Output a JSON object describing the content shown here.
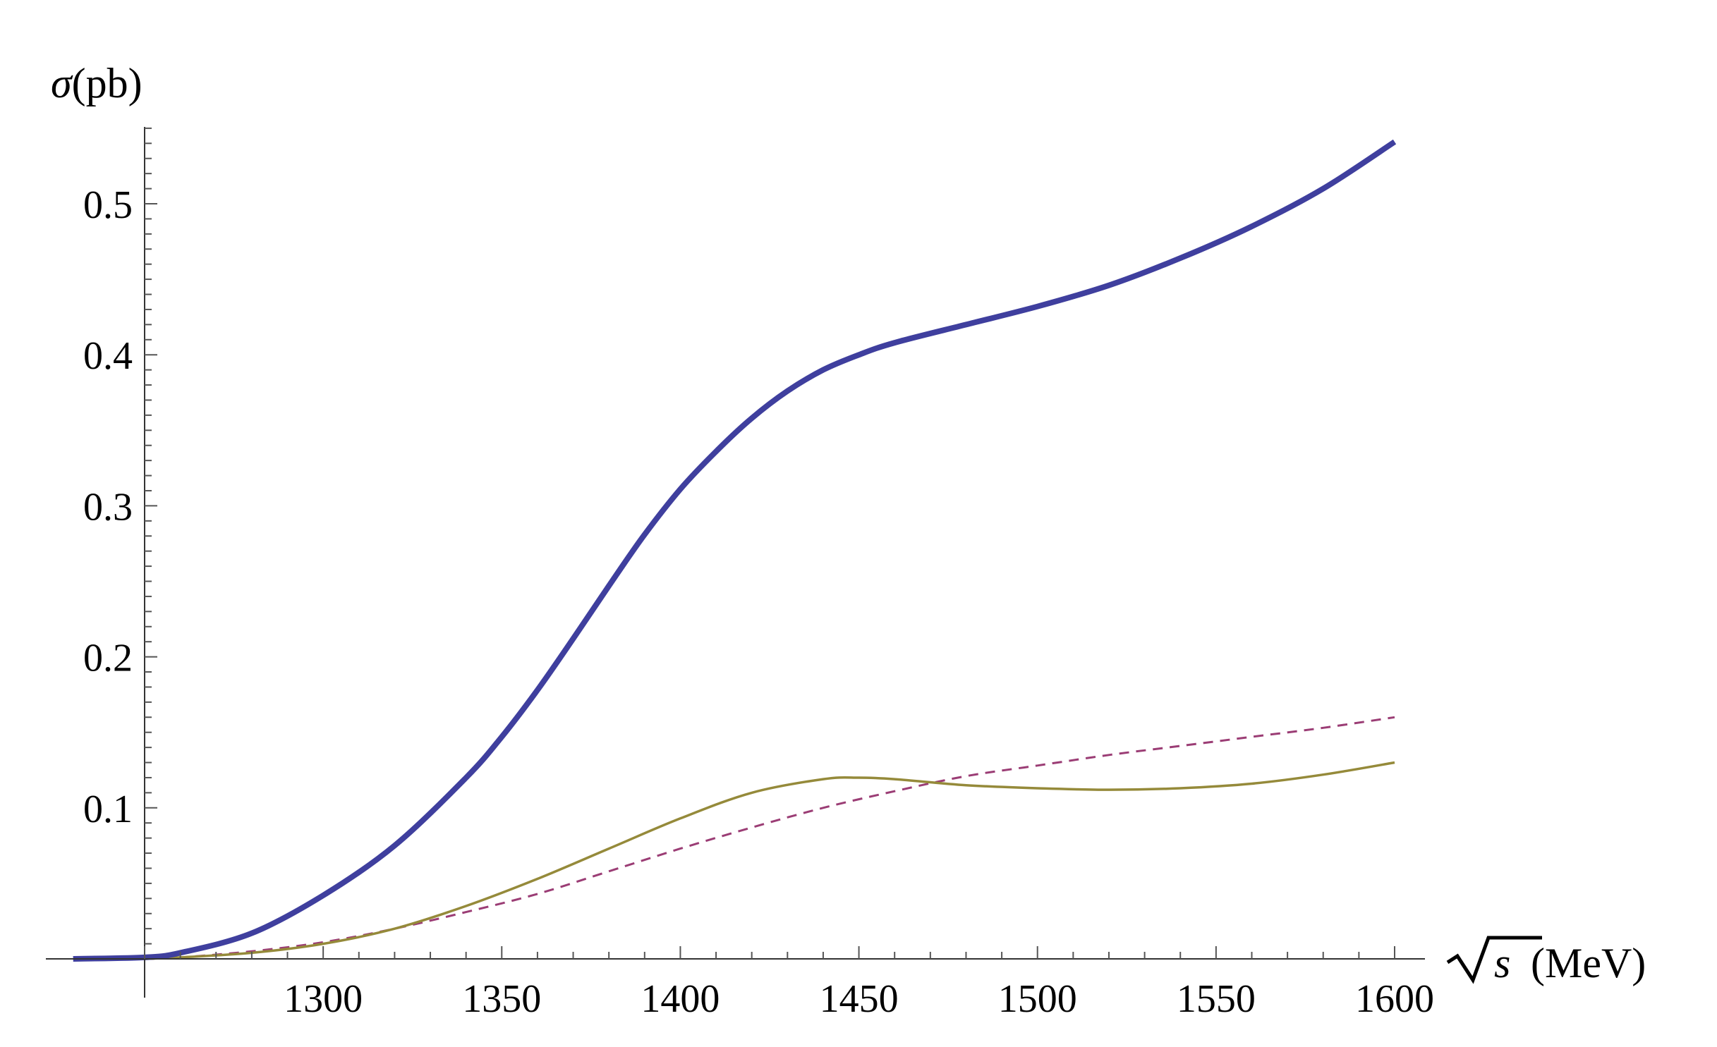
{
  "chart_data": {
    "type": "line",
    "title": "",
    "xlabel_symbol": "s",
    "xlabel_unit": "(MeV)",
    "ylabel_symbol": "σ",
    "ylabel_unit": "(pb)",
    "xlim": [
      1230,
      1600
    ],
    "ylim": [
      0,
      0.55
    ],
    "grid": false,
    "legend": "none",
    "x_ticks": [
      1300,
      1350,
      1400,
      1450,
      1500,
      1550,
      1600
    ],
    "x_tick_labels": [
      "1300",
      "1350",
      "1400",
      "1450",
      "1500",
      "1550",
      "1600"
    ],
    "y_ticks": [
      0.1,
      0.2,
      0.3,
      0.4,
      0.5
    ],
    "y_tick_labels": [
      "0.1",
      "0.2",
      "0.3",
      "0.4",
      "0.5"
    ],
    "series": [
      {
        "color": "#3f3f9e",
        "style": "solid-thick",
        "x": [
          1230,
          1250,
          1260,
          1280,
          1300,
          1320,
          1340,
          1350,
          1360,
          1370,
          1380,
          1390,
          1400,
          1410,
          1420,
          1430,
          1440,
          1450,
          1460,
          1480,
          1500,
          1520,
          1540,
          1560,
          1580,
          1600
        ],
        "y": [
          0.0,
          0.001,
          0.004,
          0.017,
          0.042,
          0.075,
          0.12,
          0.147,
          0.178,
          0.212,
          0.247,
          0.281,
          0.311,
          0.336,
          0.358,
          0.376,
          0.39,
          0.4,
          0.408,
          0.42,
          0.432,
          0.446,
          0.464,
          0.485,
          0.51,
          0.541
        ]
      },
      {
        "color": "#9b3d75",
        "style": "dashed",
        "x": [
          1250,
          1260,
          1280,
          1300,
          1320,
          1340,
          1360,
          1380,
          1400,
          1420,
          1440,
          1460,
          1480,
          1500,
          1520,
          1540,
          1560,
          1580,
          1600
        ],
        "y": [
          0.0,
          0.001,
          0.005,
          0.011,
          0.02,
          0.031,
          0.043,
          0.058,
          0.073,
          0.087,
          0.1,
          0.111,
          0.121,
          0.128,
          0.135,
          0.141,
          0.147,
          0.153,
          0.16
        ]
      },
      {
        "color": "#958a3a",
        "style": "solid-thin",
        "x": [
          1250,
          1260,
          1280,
          1300,
          1320,
          1340,
          1360,
          1380,
          1400,
          1420,
          1440,
          1450,
          1460,
          1480,
          1500,
          1520,
          1540,
          1560,
          1580,
          1600
        ],
        "y": [
          0.0,
          0.001,
          0.004,
          0.01,
          0.02,
          0.035,
          0.053,
          0.073,
          0.093,
          0.11,
          0.119,
          0.12,
          0.119,
          0.115,
          0.113,
          0.112,
          0.113,
          0.116,
          0.122,
          0.13
        ]
      }
    ]
  }
}
